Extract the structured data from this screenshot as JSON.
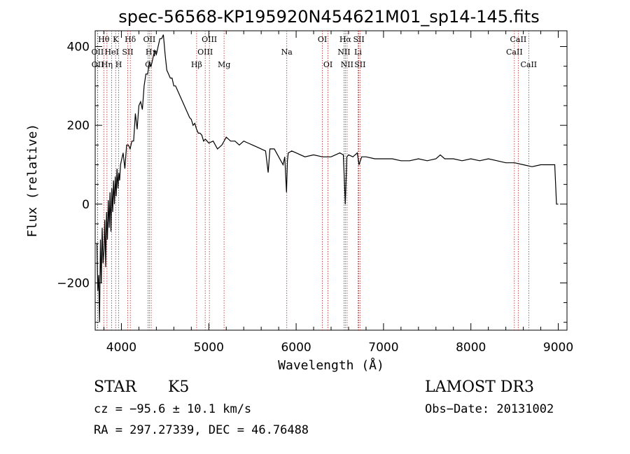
{
  "chart_data": {
    "type": "line",
    "title": "spec-56568-KP195920N454621M01_sp14-145.fits",
    "xlabel": "Wavelength (Å)",
    "ylabel": "Flux (relative)",
    "xlim": [
      3700,
      9100
    ],
    "ylim": [
      -320,
      440
    ],
    "xticks": [
      4000,
      5000,
      6000,
      7000,
      8000,
      9000
    ],
    "yticks": [
      -200,
      0,
      200,
      400
    ],
    "grid": false,
    "line_color": "#000000",
    "marker_color": "#b22222",
    "series": [
      {
        "x": [
          3720,
          3730,
          3740,
          3750,
          3760,
          3770,
          3780,
          3790,
          3800,
          3810,
          3820,
          3830,
          3840,
          3850,
          3860,
          3870,
          3880,
          3890,
          3900,
          3910,
          3920,
          3930,
          3940,
          3950,
          3960,
          3970,
          3980,
          3990,
          4000,
          4020,
          4040,
          4060,
          4080,
          4100,
          4120,
          4140,
          4160,
          4180,
          4200,
          4220,
          4240,
          4260,
          4280,
          4300,
          4320,
          4340,
          4360,
          4380,
          4400,
          4420,
          4440,
          4460,
          4480,
          4500,
          4520,
          4540,
          4560,
          4580,
          4600,
          4620,
          4640,
          4660,
          4680,
          4700,
          4720,
          4740,
          4760,
          4780,
          4800,
          4820,
          4840,
          4860,
          4880,
          4900,
          4920,
          4940,
          4960,
          4980,
          5000,
          5050,
          5100,
          5150,
          5200,
          5250,
          5300,
          5350,
          5400,
          5450,
          5500,
          5550,
          5600,
          5650,
          5680,
          5700,
          5750,
          5800,
          5850,
          5870,
          5890,
          5900,
          5910,
          5950,
          6000,
          6100,
          6200,
          6300,
          6400,
          6500,
          6540,
          6563,
          6580,
          6600,
          6650,
          6700,
          6720,
          6750,
          6800,
          6900,
          7000,
          7100,
          7200,
          7300,
          7400,
          7500,
          7600,
          7650,
          7700,
          7800,
          7900,
          8000,
          8100,
          8200,
          8300,
          8400,
          8500,
          8600,
          8700,
          8800,
          8900,
          8960,
          8980,
          9000
        ],
        "y": [
          -100,
          -220,
          -180,
          -300,
          -90,
          -200,
          -60,
          -150,
          -120,
          -40,
          -160,
          -20,
          -90,
          10,
          -60,
          30,
          -70,
          40,
          -20,
          60,
          0,
          70,
          20,
          90,
          40,
          80,
          60,
          100,
          110,
          130,
          90,
          150,
          150,
          140,
          160,
          160,
          230,
          190,
          250,
          260,
          240,
          300,
          330,
          330,
          360,
          350,
          370,
          390,
          380,
          400,
          420,
          420,
          430,
          380,
          340,
          330,
          320,
          320,
          300,
          300,
          290,
          280,
          270,
          260,
          250,
          240,
          230,
          220,
          215,
          200,
          205,
          190,
          180,
          180,
          175,
          160,
          165,
          160,
          155,
          160,
          140,
          150,
          170,
          160,
          160,
          150,
          160,
          155,
          150,
          145,
          140,
          135,
          80,
          140,
          140,
          120,
          100,
          120,
          30,
          110,
          130,
          135,
          130,
          120,
          125,
          120,
          120,
          130,
          125,
          0,
          120,
          125,
          120,
          130,
          100,
          120,
          120,
          115,
          115,
          115,
          110,
          110,
          115,
          110,
          115,
          125,
          115,
          115,
          110,
          115,
          110,
          115,
          110,
          105,
          105,
          100,
          95,
          100,
          100,
          100,
          0,
          0
        ]
      }
    ],
    "spectral_lines": [
      {
        "label": "Hθ",
        "x": 3798,
        "tier": 1
      },
      {
        "label": "OII",
        "x": 3727,
        "tier": 2
      },
      {
        "label": "OII",
        "x": 3729,
        "tier": 3
      },
      {
        "label": "Hη",
        "x": 3835,
        "tier": 3
      },
      {
        "label": "HeI",
        "x": 3889,
        "tier": 2
      },
      {
        "label": "K",
        "x": 3934,
        "tier": 1
      },
      {
        "label": "H",
        "x": 3969,
        "tier": 3
      },
      {
        "label": "SII",
        "x": 4072,
        "tier": 2
      },
      {
        "label": "Hδ",
        "x": 4102,
        "tier": 1
      },
      {
        "label": "OII",
        "x": 4320,
        "tier": 1
      },
      {
        "label": "Hγ",
        "x": 4341,
        "tier": 2
      },
      {
        "label": "G",
        "x": 4305,
        "tier": 3
      },
      {
        "label": "Hβ",
        "x": 4861,
        "tier": 3
      },
      {
        "label": "OIII",
        "x": 4959,
        "tier": 2
      },
      {
        "label": "OIII",
        "x": 5007,
        "tier": 1
      },
      {
        "label": "Mg",
        "x": 5175,
        "tier": 3
      },
      {
        "label": "Na",
        "x": 5893,
        "tier": 2
      },
      {
        "label": "OI",
        "x": 6300,
        "tier": 1
      },
      {
        "label": "OI",
        "x": 6364,
        "tier": 3
      },
      {
        "label": "Hα",
        "x": 6563,
        "tier": 1
      },
      {
        "label": "NII",
        "x": 6548,
        "tier": 2
      },
      {
        "label": "NII",
        "x": 6583,
        "tier": 3
      },
      {
        "label": "SII",
        "x": 6717,
        "tier": 1
      },
      {
        "label": "Li",
        "x": 6708,
        "tier": 2
      },
      {
        "label": "SII",
        "x": 6731,
        "tier": 3
      },
      {
        "label": "CaII",
        "x": 8542,
        "tier": 1
      },
      {
        "label": "CaII",
        "x": 8498,
        "tier": 2
      },
      {
        "label": "CaII",
        "x": 8662,
        "tier": 3
      }
    ]
  },
  "info": {
    "class": "STAR",
    "subclass": "K5",
    "survey": "LAMOST DR3",
    "cz": "cz = −95.6 ± 10.1 km/s",
    "obs_date": "Obs−Date: 20131002",
    "coords": "RA = 297.27339, DEC =  46.76488"
  }
}
